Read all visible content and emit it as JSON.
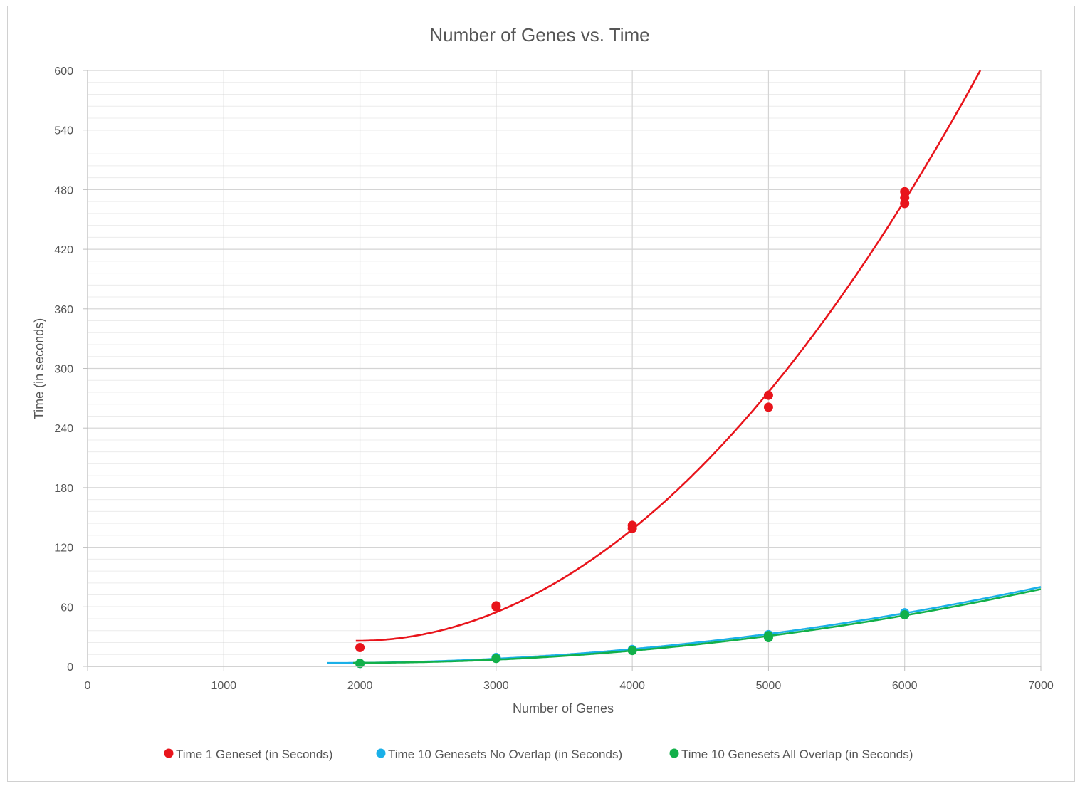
{
  "chart_data": {
    "type": "scatter",
    "title": "Number of Genes vs. Time",
    "xlabel": "Number of Genes",
    "ylabel": "Time (in seconds)",
    "xlim": [
      0,
      7000
    ],
    "ylim": [
      0,
      600
    ],
    "x_ticks": [
      "0",
      "1000",
      "2000",
      "3000",
      "4000",
      "5000",
      "6000",
      "7000"
    ],
    "y_ticks": [
      "0",
      "60",
      "120",
      "180",
      "240",
      "300",
      "360",
      "420",
      "480",
      "540",
      "600"
    ],
    "grid": true,
    "legend_position": "bottom",
    "series": [
      {
        "name": "Time 1 Geneset (in Seconds)",
        "color": "#e8141b",
        "points": [
          [
            2000,
            19
          ],
          [
            3000,
            60
          ],
          [
            3000,
            61
          ],
          [
            4000,
            139
          ],
          [
            4000,
            142
          ],
          [
            5000,
            273
          ],
          [
            5000,
            261
          ],
          [
            6000,
            478
          ],
          [
            6000,
            472
          ],
          [
            6000,
            466
          ]
        ],
        "trendline": "polynomial",
        "trendline_color": "#e8141b"
      },
      {
        "name": "Time 10 Genesets No Overlap (in Seconds)",
        "color": "#1ab0e8",
        "points": [
          [
            2000,
            3
          ],
          [
            3000,
            9
          ],
          [
            4000,
            17
          ],
          [
            5000,
            32
          ],
          [
            6000,
            54
          ]
        ],
        "trendline": "polynomial",
        "trendline_color": "#1ab0e8"
      },
      {
        "name": "Time 10 Genesets All Overlap (in Seconds)",
        "color": "#12b04a",
        "points": [
          [
            2000,
            3
          ],
          [
            3000,
            8
          ],
          [
            4000,
            16
          ],
          [
            5000,
            29
          ],
          [
            5000,
            31
          ],
          [
            6000,
            52
          ]
        ],
        "trendline": "polynomial",
        "trendline_color": "#12b04a"
      }
    ]
  }
}
